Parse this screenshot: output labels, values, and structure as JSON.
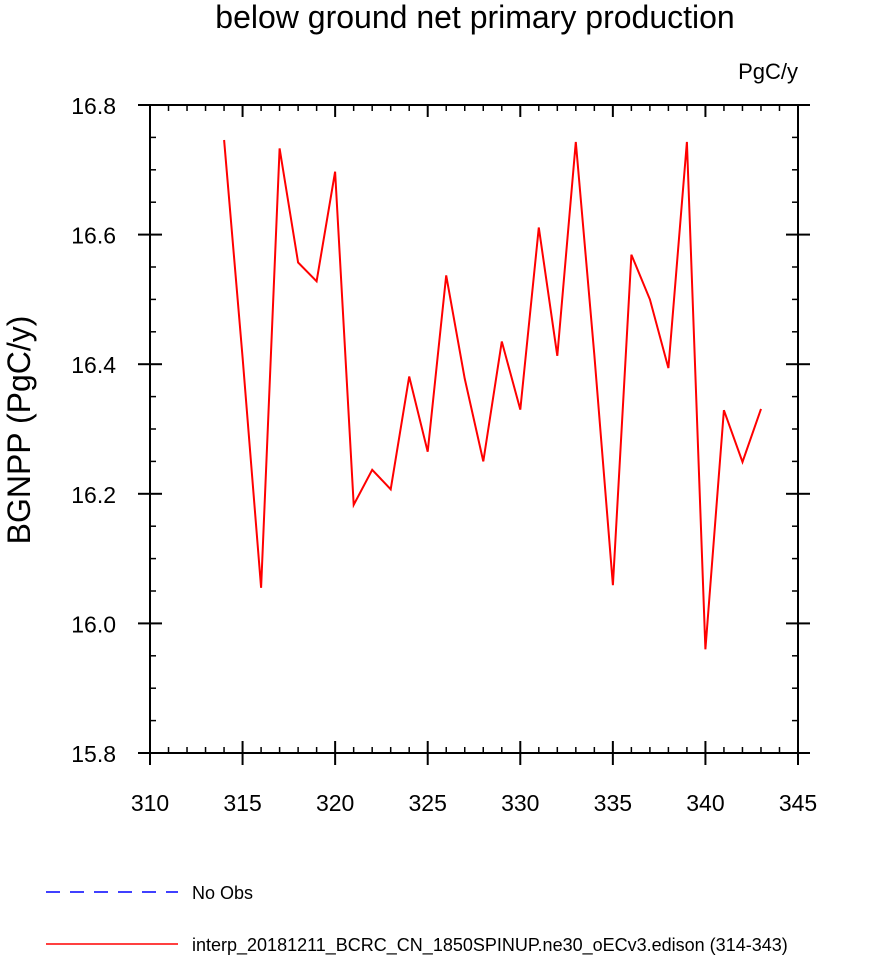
{
  "chart_data": {
    "type": "line",
    "title": "below ground net primary production",
    "units_label": "PgC/y",
    "xlabel": "",
    "ylabel": "BGNPP  (PgC/y)",
    "xlim": [
      310,
      345
    ],
    "ylim": [
      15.8,
      16.8
    ],
    "x_ticks": [
      310,
      315,
      320,
      325,
      330,
      335,
      340,
      345
    ],
    "x_tick_labels": [
      "310",
      "315",
      "320",
      "325",
      "330",
      "335",
      "340",
      "345"
    ],
    "y_ticks": [
      15.8,
      16.0,
      16.2,
      16.4,
      16.6,
      16.8
    ],
    "y_tick_labels": [
      "15.8",
      "16.0",
      "16.2",
      "16.4",
      "16.6",
      "16.8"
    ],
    "grid": false,
    "series": [
      {
        "name": "interp_20181211_BCRC_CN_1850SPINUP.ne30_oECv3.edison (314-343)",
        "color": "#ff0000",
        "x": [
          314,
          315,
          316,
          317,
          318,
          319,
          320,
          321,
          322,
          323,
          324,
          325,
          326,
          327,
          328,
          329,
          330,
          331,
          332,
          333,
          334,
          335,
          336,
          337,
          338,
          339,
          340,
          341,
          342,
          343
        ],
        "values": [
          16.746,
          16.41,
          16.055,
          16.733,
          16.557,
          16.528,
          16.697,
          16.183,
          16.237,
          16.207,
          16.381,
          16.265,
          16.537,
          16.378,
          16.25,
          16.435,
          16.33,
          16.611,
          16.413,
          16.743,
          16.415,
          16.059,
          16.569,
          16.5,
          16.394,
          16.743,
          15.96,
          16.329,
          16.249,
          16.331
        ]
      }
    ],
    "legend": {
      "placement": "bottom-left",
      "entries": [
        {
          "label": "No Obs",
          "color": "#0000ff",
          "style": "dashed"
        },
        {
          "label": "interp_20181211_BCRC_CN_1850SPINUP.ne30_oECv3.edison (314-343)",
          "color": "#ff0000",
          "style": "solid"
        }
      ]
    }
  }
}
